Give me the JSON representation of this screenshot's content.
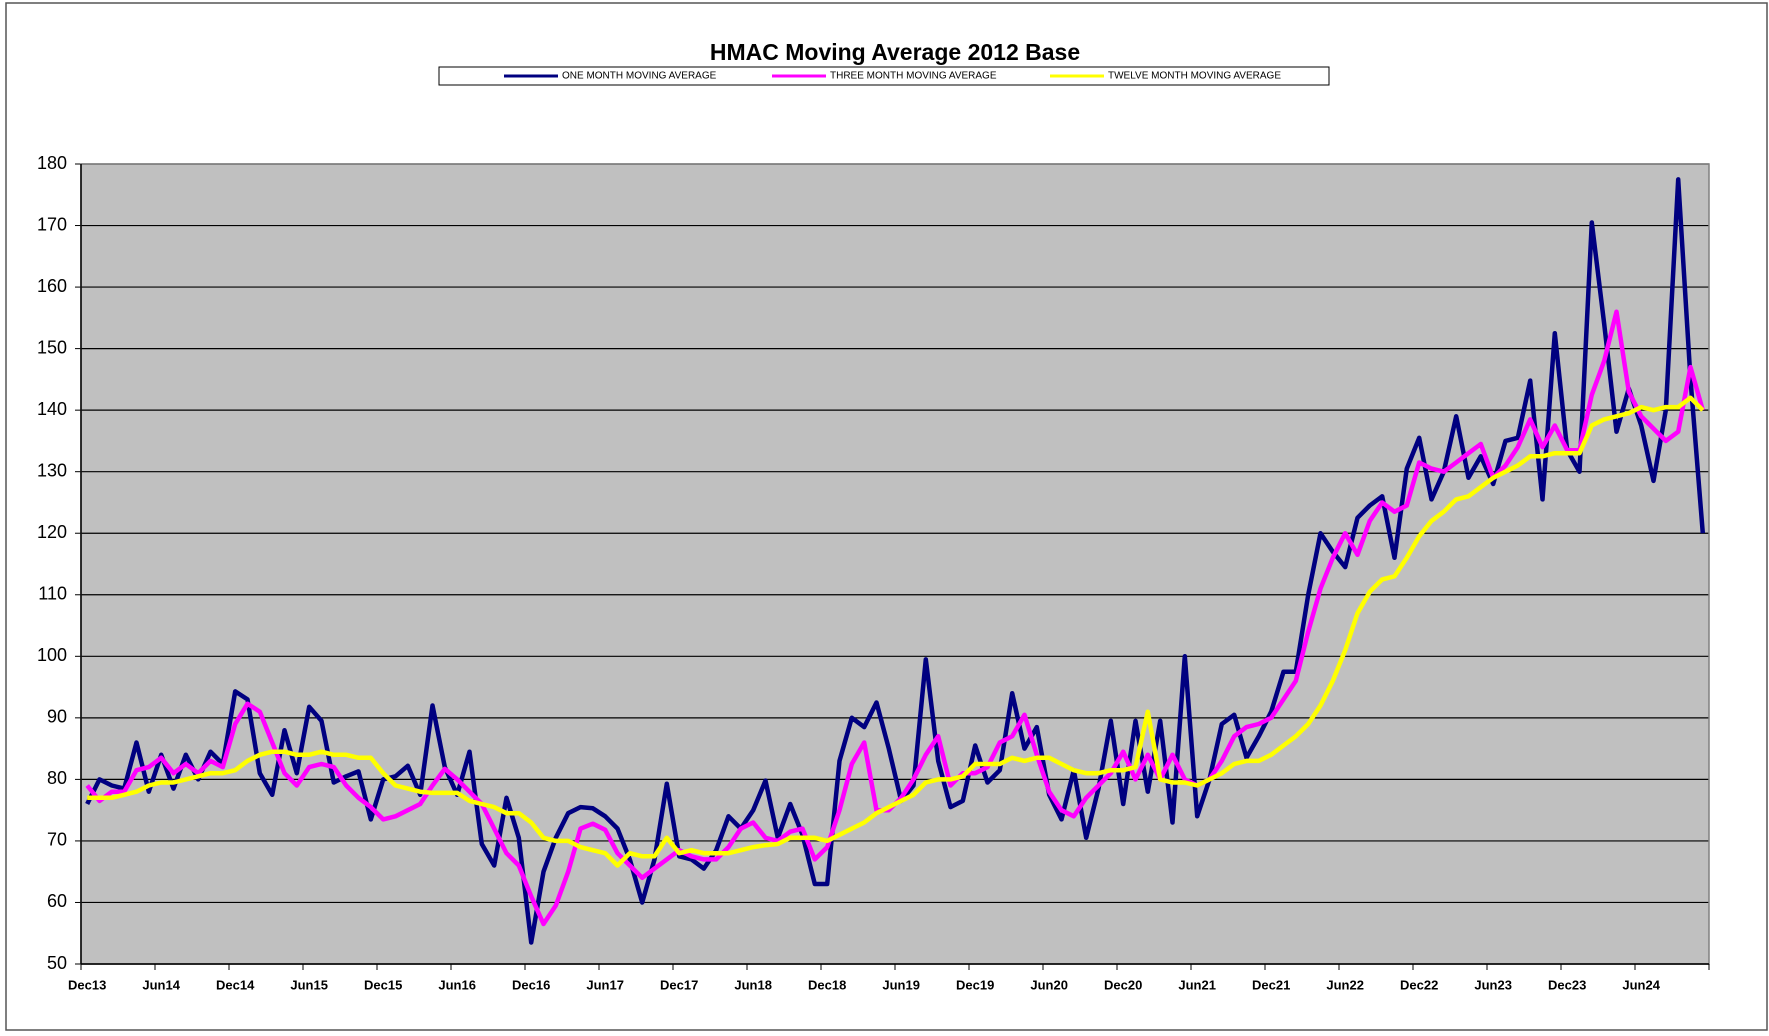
{
  "chart_data": {
    "type": "line",
    "title": "HMAC Moving Average 2012 Base",
    "categories": [
      "Dec13",
      null,
      null,
      null,
      null,
      null,
      "Jun14",
      null,
      null,
      null,
      null,
      null,
      "Dec14",
      null,
      null,
      null,
      null,
      null,
      "Jun15",
      null,
      null,
      null,
      null,
      null,
      "Dec15",
      null,
      null,
      null,
      null,
      null,
      "Jun16",
      null,
      null,
      null,
      null,
      null,
      "Dec16",
      null,
      null,
      null,
      null,
      null,
      "Jun17",
      null,
      null,
      null,
      null,
      null,
      "Dec17",
      null,
      null,
      null,
      null,
      null,
      "Jun18",
      null,
      null,
      null,
      null,
      null,
      "Dec18",
      null,
      null,
      null,
      null,
      null,
      "Jun19",
      null,
      null,
      null,
      null,
      null,
      "Dec19",
      null,
      null,
      null,
      null,
      null,
      "Jun20",
      null,
      null,
      null,
      null,
      null,
      "Dec20",
      null,
      null,
      null,
      null,
      null,
      "Jun21",
      null,
      null,
      null,
      null,
      null,
      "Dec21",
      null,
      null,
      null,
      null,
      null,
      "Jun22",
      null,
      null,
      null,
      null,
      null,
      "Dec22",
      null,
      null,
      null,
      null,
      null,
      "Jun23",
      null,
      null,
      null,
      null,
      null,
      "Dec23",
      null,
      null,
      null,
      null,
      null,
      "Jun24",
      null,
      null,
      null,
      null,
      null
    ],
    "series": [
      {
        "name": "ONE MONTH MOVING AVERAGE",
        "color": "#000080",
        "values": [
          76,
          80,
          79,
          78.5,
          86,
          78,
          84,
          78.5,
          84,
          80,
          84.5,
          82.5,
          94.3,
          93,
          81,
          77.5,
          88,
          81,
          91.8,
          89.5,
          79.5,
          80.5,
          81.3,
          73.5,
          80,
          80.5,
          82.2,
          77.5,
          92,
          82,
          77.5,
          84.5,
          69.5,
          66,
          77,
          70.5,
          53.5,
          65,
          70.5,
          74.5,
          75.5,
          75.3,
          74,
          72,
          67,
          60,
          67,
          79.3,
          67.5,
          67,
          65.5,
          68.5,
          74,
          72,
          75,
          79.8,
          70.5,
          76,
          71,
          63,
          63,
          83,
          90,
          88.5,
          92.5,
          85,
          76.5,
          79,
          99.5,
          83,
          75.5,
          76.5,
          85.5,
          79.5,
          81.5,
          94,
          85,
          88.5,
          77.5,
          73.5,
          81.5,
          70.5,
          78.5,
          89.5,
          76,
          89.5,
          78,
          89.5,
          73,
          100,
          74,
          80,
          89,
          90.5,
          83.5,
          87,
          91,
          97.5,
          97.5,
          110,
          120,
          117,
          114.5,
          122.5,
          124.5,
          126,
          116,
          130.5,
          135.5,
          125.5,
          130,
          139,
          129,
          132.5,
          128,
          135,
          135.5,
          144.8,
          125.5,
          152.5,
          133.5,
          130,
          170.5,
          154,
          136.5,
          143.5,
          137.5,
          128.5,
          140,
          177.5,
          145,
          120
        ]
      },
      {
        "name": "THREE MONTH MOVING AVERAGE",
        "color": "#ff00ff",
        "values": [
          79,
          76.5,
          78,
          78,
          81.5,
          82,
          83.5,
          81,
          82.5,
          81,
          83,
          82,
          89,
          92.3,
          91,
          86,
          81,
          79,
          82,
          82.5,
          82,
          79,
          77,
          75.5,
          73.5,
          74,
          75,
          76,
          79,
          81.7,
          80,
          78,
          76,
          72,
          68,
          66,
          61,
          56.5,
          59.5,
          65,
          72,
          72.8,
          71.8,
          68,
          66,
          64,
          65.5,
          67,
          68.5,
          67.5,
          67,
          67,
          69,
          72,
          73,
          70.5,
          70,
          71.5,
          72,
          67,
          69,
          75,
          82.5,
          86,
          75,
          75,
          77,
          80,
          84,
          87,
          79,
          81,
          81,
          82,
          86,
          87,
          90.5,
          84,
          78,
          75,
          74,
          77,
          79,
          81,
          84.5,
          80,
          84,
          80,
          84,
          80,
          79,
          80,
          83,
          87,
          88.5,
          89,
          90,
          93,
          96,
          104,
          111,
          116,
          120,
          116.5,
          122,
          125,
          123.5,
          124.5,
          131.5,
          130.5,
          130,
          131.5,
          133,
          134.5,
          129,
          131,
          134,
          138.5,
          134,
          137.5,
          133.5,
          133.5,
          142.5,
          148,
          156,
          143,
          139,
          137,
          135,
          136.5,
          147,
          140
        ]
      },
      {
        "name": "TWELVE MONTH MOVING AVERAGE",
        "color": "#ffff00",
        "values": [
          77,
          77,
          77,
          77.5,
          78,
          79,
          79.5,
          79.5,
          80,
          80.5,
          81,
          81,
          81.5,
          83,
          84,
          84.5,
          84.5,
          84,
          84,
          84.5,
          84,
          84,
          83.5,
          83.5,
          81,
          79,
          78.5,
          78,
          77.8,
          77.8,
          77.8,
          76.5,
          76,
          75.5,
          74.5,
          74.5,
          73,
          70.5,
          70,
          70,
          69,
          68.5,
          68,
          66,
          68,
          67.5,
          67.5,
          70.5,
          68,
          68.5,
          68,
          68,
          68,
          68.5,
          69,
          69.3,
          69.5,
          70.5,
          70.5,
          70.5,
          70,
          71,
          72,
          73,
          74.5,
          75.5,
          76.5,
          77.5,
          79.5,
          80,
          80,
          80.5,
          82.5,
          82.5,
          82.5,
          83.5,
          83,
          83.5,
          83.5,
          82.5,
          81.5,
          81,
          81,
          81.5,
          81.5,
          82,
          91,
          80,
          79.5,
          79.5,
          79,
          80,
          81,
          82.5,
          83,
          83,
          84,
          85.5,
          87,
          89,
          92,
          96,
          101,
          107,
          110.5,
          112.5,
          113,
          116,
          119.5,
          122,
          123.5,
          125.5,
          126,
          127.5,
          129,
          130,
          131,
          132.5,
          132.5,
          133,
          133,
          133,
          137.5,
          138.5,
          139,
          139.5,
          140.5,
          140,
          140.5,
          140.5,
          142,
          140
        ]
      }
    ],
    "ylim": [
      50,
      180
    ],
    "yticks": [
      50,
      60,
      70,
      80,
      90,
      100,
      110,
      120,
      130,
      140,
      150,
      160,
      170,
      180
    ],
    "grid": true,
    "legend": "top",
    "background": "#c0c0c0"
  }
}
